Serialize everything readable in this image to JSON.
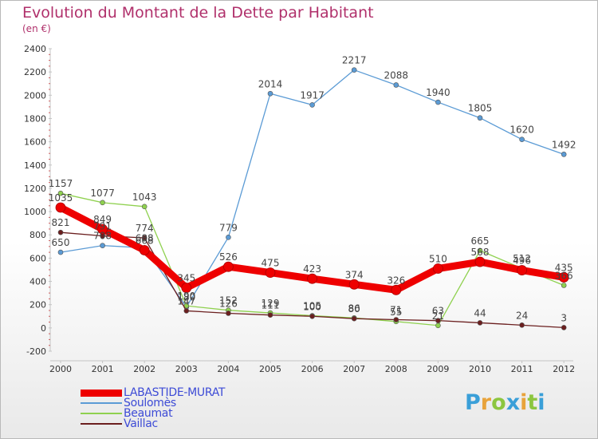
{
  "header": {
    "title": "Evolution du Montant de la Dette par Habitant",
    "subtitle": "(en €)"
  },
  "chart_data": {
    "type": "line",
    "title": "Evolution du Montant de la Dette par Habitant",
    "subtitle": "(en €)",
    "xlabel": "",
    "ylabel": "",
    "x": [
      "2000",
      "2001",
      "2002",
      "2003",
      "2004",
      "2005",
      "2006",
      "2007",
      "2008",
      "2009",
      "2010",
      "2011",
      "2012"
    ],
    "ylim": [
      -200,
      2400
    ],
    "yticks": [
      -200,
      0,
      200,
      400,
      600,
      800,
      1000,
      1200,
      1400,
      1600,
      1800,
      2000,
      2200,
      2400
    ],
    "grid": false,
    "legend_position": "bottom-left",
    "series": [
      {
        "name": "LABASTIDE-MURAT",
        "color": "#ee0000",
        "values": [
          1035,
          849,
          668,
          345,
          526,
          475,
          423,
          374,
          326,
          510,
          568,
          496,
          435
        ]
      },
      {
        "name": "Soulomès",
        "color": "#5b9bd5",
        "values": [
          650,
          708,
          688,
          180,
          779,
          2014,
          1917,
          2217,
          2088,
          1940,
          1805,
          1620,
          1492
        ]
      },
      {
        "name": "Beaumat",
        "color": "#8fd14f",
        "values": [
          1157,
          1077,
          1043,
          190,
          152,
          129,
          105,
          86,
          55,
          21,
          665,
          512,
          366
        ]
      },
      {
        "name": "Vaillac",
        "color": "#6b1f1f",
        "values": [
          821,
          791,
          774,
          147,
          126,
          111,
          100,
          80,
          71,
          63,
          44,
          24,
          3
        ]
      }
    ]
  },
  "logo": {
    "text": "Proxiti",
    "letters": [
      "P",
      "r",
      "o",
      "x",
      "i",
      "t",
      "i"
    ],
    "colors": [
      "#3a9fd8",
      "#e8a33b",
      "#8cc63f",
      "#3a9fd8",
      "#e8a33b",
      "#8cc63f",
      "#3a9fd8"
    ]
  }
}
